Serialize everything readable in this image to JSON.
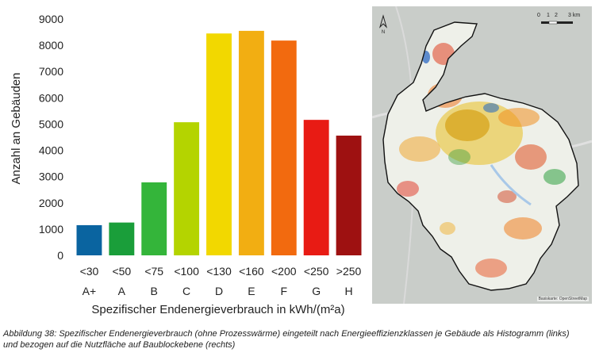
{
  "chart_data": {
    "type": "bar",
    "categories": [
      "<30",
      "<50",
      "<75",
      "<100",
      "<130",
      "<160",
      "<200",
      "<250",
      ">250"
    ],
    "classes": [
      "A+",
      "A",
      "B",
      "C",
      "D",
      "E",
      "F",
      "G",
      "H"
    ],
    "values": [
      1150,
      1250,
      2780,
      5070,
      8450,
      8550,
      8180,
      5160,
      4560
    ],
    "colors": [
      "#0a64a0",
      "#1a9e3a",
      "#34b53a",
      "#b4d400",
      "#f2d800",
      "#f2ae12",
      "#f26a0f",
      "#e81b14",
      "#9e1111"
    ],
    "ylim": [
      0,
      9000
    ],
    "yticks": [
      0,
      1000,
      2000,
      3000,
      4000,
      5000,
      6000,
      7000,
      8000,
      9000
    ],
    "ylabel": "Anzahl an Gebäuden",
    "xlabel": "Spezifischer Endenergieverbrauch in kWh/(m²a)",
    "grid": false
  },
  "map": {
    "north_label": "N",
    "scale_labels": [
      "0",
      "1",
      "2",
      "3 km"
    ],
    "basemap_credit": "Basiskarte: OpenStreetMap"
  },
  "caption": {
    "line1": "Abbildung 38: Spezifischer Endenergieverbrauch (ohne Prozesswärme) eingeteilt nach Energieeffizienzklassen je Gebäude als Histogramm (links)",
    "line2": "und bezogen auf die Nutzfläche auf Baublockebene (rechts)"
  }
}
